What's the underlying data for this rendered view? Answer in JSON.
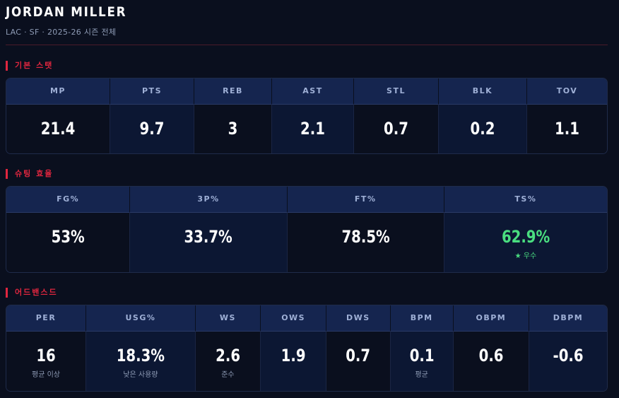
{
  "player": {
    "name": "JORDAN MILLER",
    "meta": "LAC · SF · 2025-26 시즌 전체"
  },
  "basic": {
    "title": "기본 스탯",
    "stats": [
      {
        "label": "MP",
        "value": "21.4"
      },
      {
        "label": "PTS",
        "value": "9.7"
      },
      {
        "label": "REB",
        "value": "3"
      },
      {
        "label": "AST",
        "value": "2.1"
      },
      {
        "label": "STL",
        "value": "0.7"
      },
      {
        "label": "BLK",
        "value": "0.2"
      },
      {
        "label": "TOV",
        "value": "1.1"
      }
    ]
  },
  "shooting": {
    "title": "슈팅 효율",
    "stats": [
      {
        "label": "FG%",
        "value": "53%"
      },
      {
        "label": "3P%",
        "value": "33.7%"
      },
      {
        "label": "FT%",
        "value": "78.5%"
      },
      {
        "label": "TS%",
        "value": "62.9%",
        "note": "★ 우수"
      }
    ]
  },
  "advanced": {
    "title": "어드밴스드",
    "stats": [
      {
        "label": "PER",
        "value": "16",
        "note": "평균 이상"
      },
      {
        "label": "USG%",
        "value": "18.3%",
        "note": "낮은 사용량"
      },
      {
        "label": "WS",
        "value": "2.6",
        "note": "준수"
      },
      {
        "label": "OWS",
        "value": "1.9"
      },
      {
        "label": "DWS",
        "value": "0.7"
      },
      {
        "label": "BPM",
        "value": "0.1",
        "note": "평균"
      },
      {
        "label": "OBPM",
        "value": "0.6"
      },
      {
        "label": "DBPM",
        "value": "-0.6"
      }
    ]
  },
  "colors": {
    "accent": "#e0263f",
    "good": "#4ade80",
    "background": "#0a0f1e",
    "header": "#15254f"
  }
}
